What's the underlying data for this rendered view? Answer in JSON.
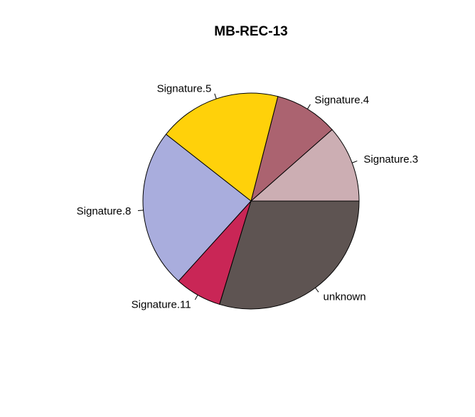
{
  "chart_data": {
    "type": "pie",
    "title": "MB-REC-13",
    "slices": [
      {
        "label": "Signature.3",
        "value": 11.5,
        "color": "#CCAEB3"
      },
      {
        "label": "Signature.4",
        "value": 9.5,
        "color": "#AB6370"
      },
      {
        "label": "Signature.5",
        "value": 18.4,
        "color": "#FFD10A"
      },
      {
        "label": "Signature.8",
        "value": 23.9,
        "color": "#A9ADDD"
      },
      {
        "label": "Signature.11",
        "value": 7.0,
        "color": "#C92656"
      },
      {
        "label": "unknown",
        "value": 29.7,
        "color": "#5E5452"
      }
    ],
    "start": "3 o'clock",
    "direction": "counterclockwise"
  }
}
